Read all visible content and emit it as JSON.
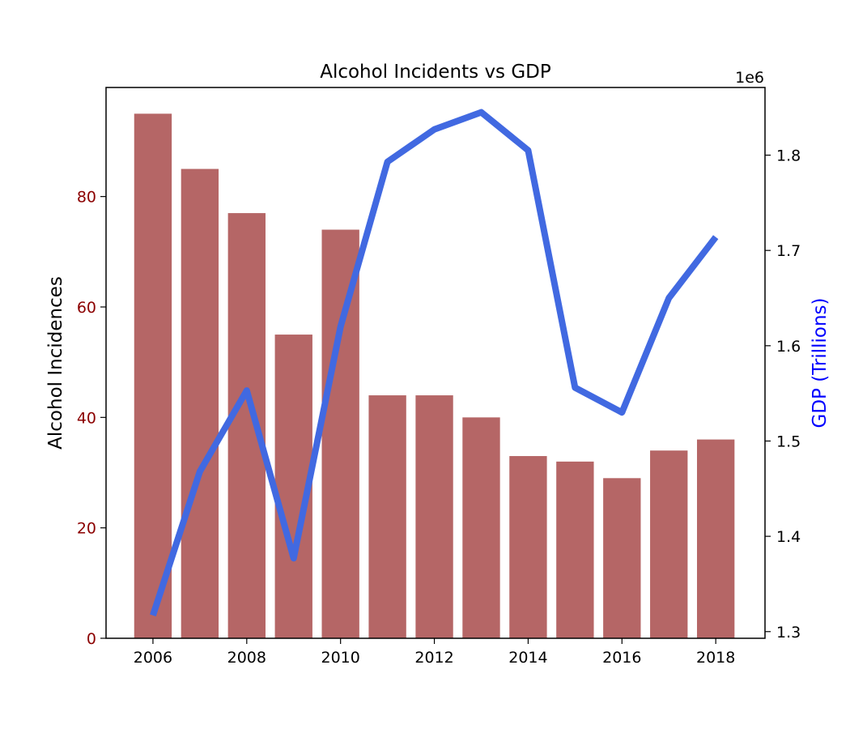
{
  "chart_data": {
    "type": "bar+line",
    "title": "Alcohol Incidents vs GDP",
    "categories": [
      2006,
      2007,
      2008,
      2009,
      2010,
      2011,
      2012,
      2013,
      2014,
      2015,
      2016,
      2017,
      2018
    ],
    "x_ticks": [
      "2006",
      "2008",
      "2010",
      "2012",
      "2014",
      "2016",
      "2018"
    ],
    "xlim": [
      2005,
      2019.05
    ],
    "left_axis": {
      "label": "Alcohol Incidences",
      "ylim": [
        0,
        99.75
      ],
      "ticks": [
        0,
        20,
        40,
        60,
        80
      ],
      "tick_color": "#8b0000"
    },
    "right_axis": {
      "label": "GDP (Trillions)",
      "offset_label": "1e6",
      "ylim": [
        1.293,
        1.871
      ],
      "ticks": [
        1.3,
        1.4,
        1.5,
        1.6,
        1.7,
        1.8
      ],
      "tick_labels": [
        "1.3",
        "1.4",
        "1.5",
        "1.6",
        "1.7",
        "1.8"
      ],
      "label_color": "#0000ff"
    },
    "series": [
      {
        "kind": "bar",
        "axis": "left",
        "color": "#b56666",
        "values": [
          95,
          85,
          77,
          55,
          74,
          44,
          44,
          40,
          33,
          32,
          29,
          34,
          36
        ]
      },
      {
        "kind": "line",
        "axis": "right",
        "color": "#4169e1",
        "values": [
          1.317,
          1.468,
          1.553,
          1.377,
          1.62,
          1.793,
          1.827,
          1.845,
          1.805,
          1.556,
          1.53,
          1.65,
          1.714
        ]
      }
    ],
    "grid": false
  }
}
